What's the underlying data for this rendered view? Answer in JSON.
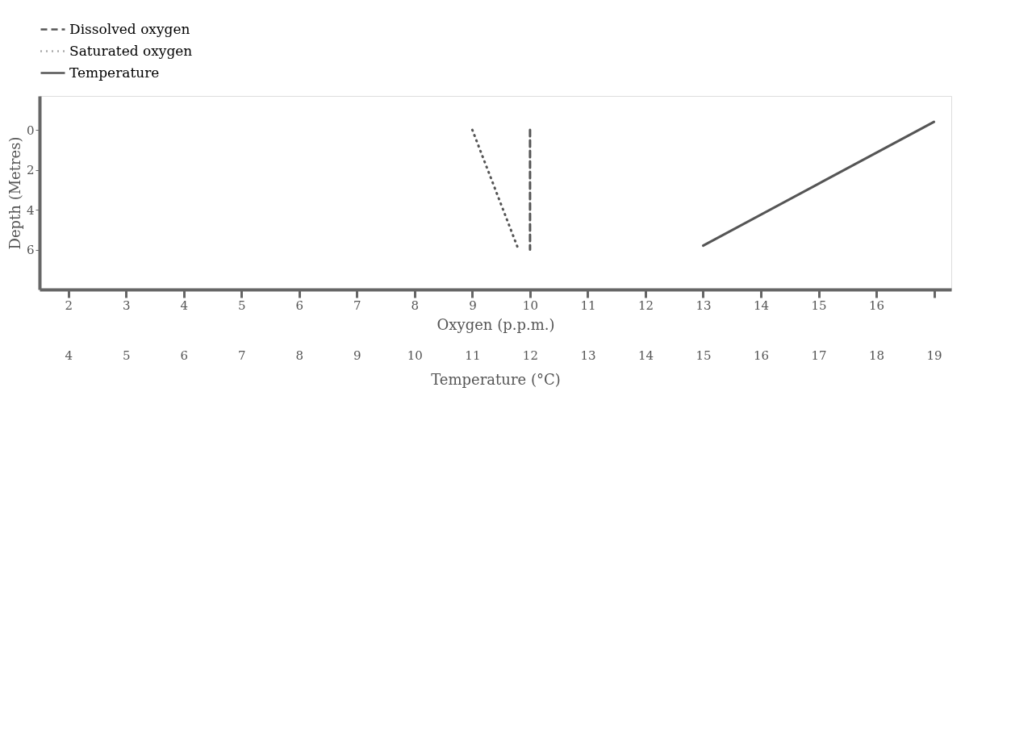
{
  "chart_data": {
    "type": "line",
    "xlabel": "Oxygen (p.p.m.)",
    "ylabel": "Depth (Metres)",
    "x2label": "Temperature (°C)",
    "xlim": [
      1.5,
      17.3
    ],
    "xticks": [
      2,
      3,
      4,
      5,
      6,
      7,
      8,
      9,
      10,
      11,
      12,
      13,
      14,
      15,
      16,
      {
        "value": 17,
        "label": null
      }
    ],
    "x2lim": [
      3.5,
      19.3
    ],
    "x2ticks": [
      4,
      5,
      6,
      7,
      8,
      9,
      10,
      11,
      12,
      13,
      14,
      15,
      16,
      17,
      18,
      19
    ],
    "ylim": [
      8,
      -1.7
    ],
    "yticks": [
      0,
      2,
      4,
      6
    ],
    "grid": false,
    "legend": "top",
    "series": [
      {
        "name": "Dissolved oxygen",
        "color": "#555555",
        "line_style": "dashed",
        "x": [
          10,
          10
        ],
        "values": [
          0,
          6
        ]
      },
      {
        "name": "Saturated oxygen",
        "color": "#555555",
        "line_style": "dotted",
        "x": [
          9,
          9.8
        ],
        "values": [
          0,
          6
        ]
      },
      {
        "name": "Temperature",
        "color": "#555555",
        "line_style": "solid",
        "axis": "x2",
        "x": [
          15,
          19
        ],
        "values": [
          5.8,
          -0.4
        ]
      }
    ]
  }
}
